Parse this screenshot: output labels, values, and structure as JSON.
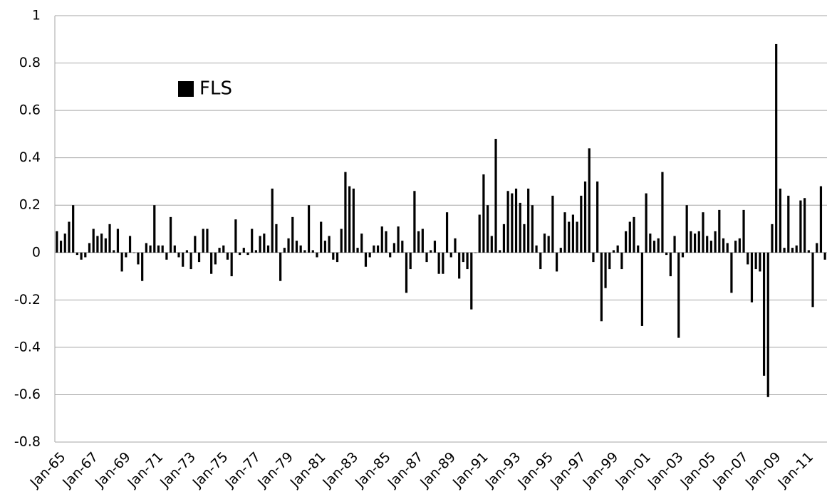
{
  "chart_data": {
    "type": "bar",
    "categories": [
      "Jan-65",
      null,
      null,
      null,
      null,
      null,
      null,
      null,
      "Jan-67",
      null,
      null,
      null,
      null,
      null,
      null,
      null,
      "Jan-69",
      null,
      null,
      null,
      null,
      null,
      null,
      null,
      "Jan-71",
      null,
      null,
      null,
      null,
      null,
      null,
      null,
      "Jan-73",
      null,
      null,
      null,
      null,
      null,
      null,
      null,
      "Jan-75",
      null,
      null,
      null,
      null,
      null,
      null,
      null,
      "Jan-77",
      null,
      null,
      null,
      null,
      null,
      null,
      null,
      "Jan-79",
      null,
      null,
      null,
      null,
      null,
      null,
      null,
      "Jan-81",
      null,
      null,
      null,
      null,
      null,
      null,
      null,
      "Jan-83",
      null,
      null,
      null,
      null,
      null,
      null,
      null,
      "Jan-85",
      null,
      null,
      null,
      null,
      null,
      null,
      null,
      "Jan-87",
      null,
      null,
      null,
      null,
      null,
      null,
      null,
      "Jan-89",
      null,
      null,
      null,
      null,
      null,
      null,
      null,
      "Jan-91",
      null,
      null,
      null,
      null,
      null,
      null,
      null,
      "Jan-93",
      null,
      null,
      null,
      null,
      null,
      null,
      null,
      "Jan-95",
      null,
      null,
      null,
      null,
      null,
      null,
      null,
      "Jan-97",
      null,
      null,
      null,
      null,
      null,
      null,
      null,
      "Jan-99",
      null,
      null,
      null,
      null,
      null,
      null,
      null,
      "Jan-01",
      null,
      null,
      null,
      null,
      null,
      null,
      null,
      "Jan-03",
      null,
      null,
      null,
      null,
      null,
      null,
      null,
      "Jan-05",
      null,
      null,
      null,
      null,
      null,
      null,
      null,
      "Jan-07",
      null,
      null,
      null,
      null,
      null,
      null,
      null,
      "Jan-09",
      null,
      null,
      null,
      null,
      null,
      null,
      null,
      "Jan-11",
      null,
      null,
      null,
      null,
      null
    ],
    "series": [
      {
        "name": "FLS",
        "color": "#000000",
        "values": [
          0.09,
          0.05,
          0.08,
          0.13,
          0.2,
          -0.01,
          -0.03,
          -0.02,
          0.04,
          0.1,
          0.07,
          0.08,
          0.06,
          0.12,
          0.01,
          0.1,
          -0.08,
          -0.02,
          0.07,
          0,
          -0.05,
          -0.12,
          0.04,
          0.03,
          0.2,
          0.03,
          0.03,
          -0.03,
          0.15,
          0.03,
          -0.02,
          -0.06,
          0.01,
          -0.07,
          0.07,
          -0.04,
          0.1,
          0.1,
          -0.09,
          -0.05,
          0.02,
          0.03,
          -0.03,
          -0.1,
          0.14,
          -0.01,
          0.02,
          -0.01,
          0.1,
          0.01,
          0.07,
          0.08,
          0.03,
          0.27,
          0.12,
          -0.12,
          0.02,
          0.06,
          0.15,
          0.05,
          0.03,
          0.01,
          0.2,
          0.01,
          -0.02,
          0.13,
          0.05,
          0.07,
          -0.03,
          -0.04,
          0.1,
          0.34,
          0.28,
          0.27,
          0.02,
          0.08,
          -0.06,
          -0.02,
          0.03,
          0.03,
          0.11,
          0.09,
          -0.02,
          0.04,
          0.11,
          0.05,
          -0.17,
          -0.07,
          0.26,
          0.09,
          0.1,
          -0.04,
          0.01,
          0.05,
          -0.09,
          -0.09,
          0.17,
          -0.02,
          0.06,
          -0.11,
          -0.04,
          -0.07,
          -0.24,
          0,
          0.16,
          0.33,
          0.2,
          0.07,
          0.48,
          0.01,
          0.12,
          0.26,
          0.25,
          0.27,
          0.21,
          0.12,
          0.27,
          0.2,
          0.03,
          -0.07,
          0.08,
          0.07,
          0.24,
          -0.08,
          0.02,
          0.17,
          0.13,
          0.16,
          0.13,
          0.24,
          0.3,
          0.44,
          -0.04,
          0.3,
          -0.29,
          -0.15,
          -0.07,
          0.01,
          0.03,
          -0.07,
          0.09,
          0.13,
          0.15,
          0.03,
          -0.31,
          0.25,
          0.08,
          0.05,
          0.06,
          0.34,
          -0.01,
          -0.1,
          0.07,
          -0.36,
          -0.02,
          0.2,
          0.09,
          0.08,
          0.09,
          0.17,
          0.07,
          0.05,
          0.09,
          0.18,
          0.06,
          0.04,
          -0.17,
          0.05,
          0.06,
          0.18,
          -0.05,
          -0.21,
          -0.07,
          -0.08,
          -0.52,
          -0.61,
          0.12,
          0.88,
          0.27,
          0.02,
          0.24,
          0.02,
          0.03,
          0.22,
          0.23,
          0.01,
          -0.23,
          0.04,
          0.28,
          -0.03
        ]
      }
    ],
    "ylim": [
      -0.8,
      1
    ],
    "yticks": [
      -0.8,
      -0.6,
      -0.4,
      -0.2,
      0,
      0.2,
      0.4,
      0.6,
      0.8,
      1
    ],
    "grid": true,
    "legend": "upper left"
  }
}
